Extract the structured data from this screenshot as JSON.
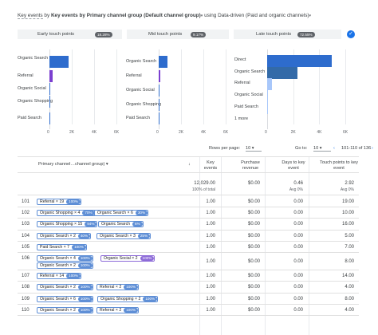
{
  "title": {
    "text": "Key events by Primary channel group (Default channel group)",
    "suffix": " using Data-driven (Paid and organic channels)"
  },
  "touchpoints": [
    {
      "label": "Early touch points",
      "pct": "18.28%"
    },
    {
      "label": "Mid touch points",
      "pct": "9.17%"
    },
    {
      "label": "Late touch points",
      "pct": "72.55%"
    }
  ],
  "chart_data": [
    {
      "type": "bar",
      "title": "Early touch points",
      "categories": [
        "Organic Search",
        "Referral",
        "Organic Social",
        "Organic Shopping",
        "Paid Search"
      ],
      "values": [
        1700,
        300,
        20,
        20,
        50
      ],
      "xlim": [
        0,
        6000
      ],
      "ticks": [
        "0",
        "2K",
        "4K",
        "6K"
      ]
    },
    {
      "type": "bar",
      "title": "Mid touch points",
      "categories": [
        "Organic Search",
        "Referral",
        "Organic Social",
        "Organic Shopping",
        "Paid Search"
      ],
      "values": [
        800,
        150,
        15,
        15,
        30
      ],
      "xlim": [
        0,
        6000
      ],
      "ticks": [
        "0",
        "2K",
        "4K",
        "6K"
      ]
    },
    {
      "type": "bar",
      "title": "Late touch points",
      "categories": [
        "Direct",
        "Organic Search",
        "Referral",
        "Organic Social",
        "Paid Search",
        "1 more"
      ],
      "values": [
        5800,
        2700,
        400,
        30,
        60,
        0
      ],
      "xlim": [
        0,
        7000
      ],
      "ticks": [
        "0",
        "2K",
        "4K",
        "6K"
      ]
    }
  ],
  "colors": {
    "bar1": "#2e6ccd",
    "bar2": "#7b3fd0",
    "bar3": "#336aa8",
    "bar4": "#a8c7fa",
    "accent": "#1a73e8",
    "chip": "#5f8fd6",
    "chip_purple": "#8d6bd8"
  },
  "controls": {
    "rows_label": "Rows per page:",
    "rows_value": "10",
    "goto_label": "Go to:",
    "goto_value": "10",
    "range": "101-110 of 136"
  },
  "table": {
    "headers": {
      "dim": "Primary channel…channel group)",
      "sort": "↓",
      "key_events": "Key events",
      "revenue": "Purchase revenue",
      "days": "Days to key event",
      "touch": "Touch points to key event"
    },
    "totals": {
      "key_events": "12,029.00",
      "key_events_sub": "100% of total",
      "revenue": "$0.00",
      "days": "0.46",
      "days_sub": "Avg 0%",
      "touch": "2.92",
      "touch_sub": "Avg 0%"
    },
    "rows": [
      {
        "n": "101",
        "chips": [
          {
            "t": "Referral × 19",
            "b": "100%"
          }
        ],
        "ke": "1.00",
        "rev": "$0.00",
        "days": "0.00",
        "touch": "19.00"
      },
      {
        "n": "102",
        "chips": [
          {
            "t": "Organic Shopping × 4",
            "b": "70%"
          },
          {
            "t": "Organic Search × 6",
            "b": "30%"
          }
        ],
        "ke": "1.00",
        "rev": "$0.00",
        "days": "0.00",
        "touch": "10.00"
      },
      {
        "n": "103",
        "chips": [
          {
            "t": "Organic Shopping × 15",
            "b": "94%"
          },
          {
            "t": "Organic Search",
            "b": "6%"
          }
        ],
        "ke": "1.00",
        "rev": "$0.00",
        "days": "0.00",
        "touch": "16.00"
      },
      {
        "n": "104",
        "chips": [
          {
            "t": "Organic Search × 2",
            "b": "40%"
          },
          {
            "t": "Organic Search × 3",
            "b": "25%"
          }
        ],
        "ke": "1.00",
        "rev": "$0.00",
        "days": "0.00",
        "touch": "5.00"
      },
      {
        "n": "105",
        "chips": [
          {
            "t": "Paid Search × 7",
            "b": "100%"
          }
        ],
        "ke": "1.00",
        "rev": "$0.00",
        "days": "0.00",
        "touch": "7.00"
      },
      {
        "n": "106",
        "chips": [
          {
            "t": "Organic Search × 4",
            "b": "100%"
          },
          {
            "t": "Organic Social × 2",
            "b": "100%",
            "p": true
          },
          {
            "t": "Organic Search × 2",
            "b": "100%"
          }
        ],
        "ke": "1.00",
        "rev": "$0.00",
        "days": "0.00",
        "touch": "8.00"
      },
      {
        "n": "107",
        "chips": [
          {
            "t": "Referral × 14",
            "b": "100%"
          }
        ],
        "ke": "1.00",
        "rev": "$0.00",
        "days": "0.00",
        "touch": "14.00"
      },
      {
        "n": "108",
        "chips": [
          {
            "t": "Organic Search × 2",
            "b": "100%"
          },
          {
            "t": "Referral × 2",
            "b": "100%"
          }
        ],
        "ke": "1.00",
        "rev": "$0.00",
        "days": "0.00",
        "touch": "4.00"
      },
      {
        "n": "109",
        "chips": [
          {
            "t": "Organic Search × 6",
            "b": "100%"
          },
          {
            "t": "Organic Shopping × 2",
            "b": "100%"
          }
        ],
        "ke": "1.00",
        "rev": "$0.00",
        "days": "0.00",
        "touch": "8.00"
      },
      {
        "n": "110",
        "chips": [
          {
            "t": "Organic Search × 2",
            "b": "100%"
          },
          {
            "t": "Referral × 2",
            "b": "100%"
          }
        ],
        "ke": "1.00",
        "rev": "$0.00",
        "days": "0.00",
        "touch": "4.00"
      }
    ]
  }
}
